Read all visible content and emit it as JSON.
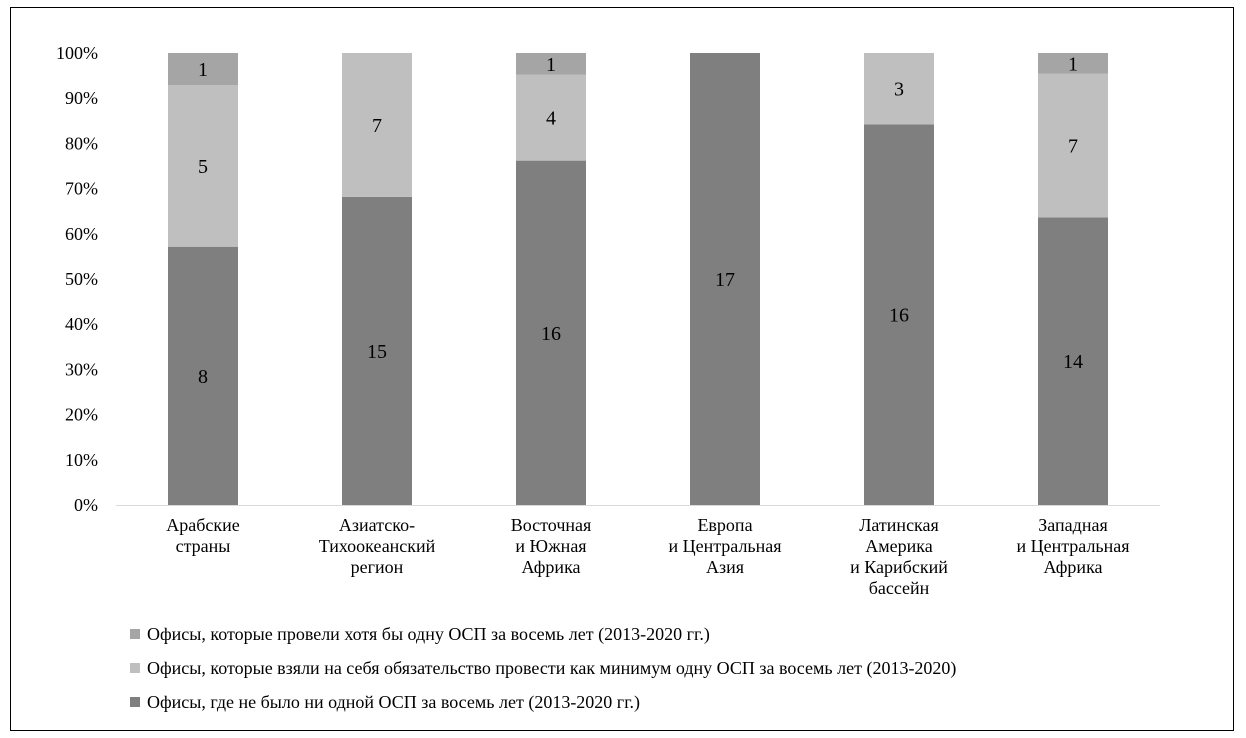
{
  "chart_data": {
    "type": "bar",
    "stacked": "percent",
    "categories": [
      [
        "Арабские",
        "страны"
      ],
      [
        "Азиатско-",
        "Тихоокеанский",
        "регион"
      ],
      [
        "Восточная",
        "и Южная",
        "Африка"
      ],
      [
        "Европа",
        "и Центральная",
        "Азия"
      ],
      [
        "Латинская",
        "Америка",
        "и Карибский",
        "бассейн"
      ],
      [
        "Западная",
        "и Центральная",
        "Африка"
      ]
    ],
    "series": [
      {
        "name": "Офисы, где не было ни одной ОСП за восемь лет (2013-2020 гг.)",
        "values": [
          8,
          15,
          16,
          17,
          16,
          14
        ],
        "color": "#7f7f7f"
      },
      {
        "name": "Офисы, которые взяли на себя обязательство провести как минимум одну ОСП за восемь лет (2013-2020)",
        "values": [
          5,
          7,
          4,
          0,
          3,
          7
        ],
        "color": "#bfbfbf"
      },
      {
        "name": "Офисы, которые провели хотя бы одну ОСП за восемь лет (2013-2020 гг.)",
        "values": [
          1,
          0,
          1,
          0,
          0,
          1
        ],
        "color": "#a5a5a5"
      }
    ],
    "ylim": [
      0,
      100
    ],
    "yticks": [
      "0%",
      "10%",
      "20%",
      "30%",
      "40%",
      "50%",
      "60%",
      "70%",
      "80%",
      "90%",
      "100%"
    ],
    "grid": false,
    "legend_order": [
      2,
      1,
      0
    ],
    "legend_position": "bottom"
  }
}
